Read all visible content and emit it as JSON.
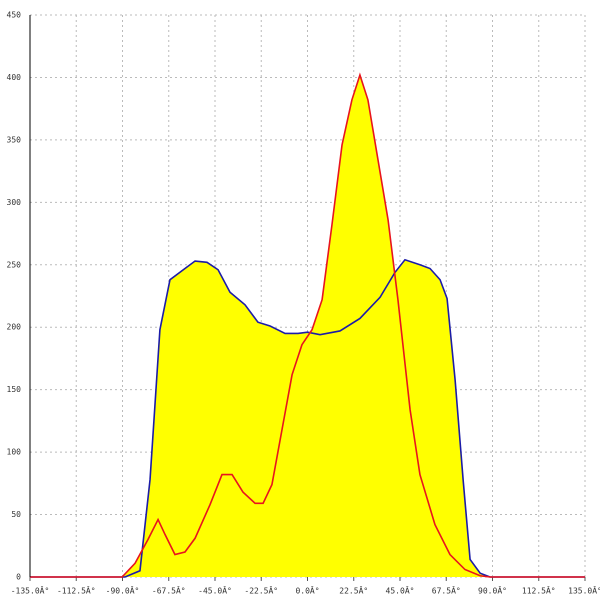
{
  "chart_data": {
    "type": "area",
    "xlim": [
      -135,
      135
    ],
    "xticks": [
      {
        "value": -135,
        "label": "-135.0Â°"
      },
      {
        "value": -112.5,
        "label": "-112.5Â°"
      },
      {
        "value": -90,
        "label": "-90.0Â°"
      },
      {
        "value": -67.5,
        "label": "-67.5Â°"
      },
      {
        "value": -45,
        "label": "-45.0Â°"
      },
      {
        "value": -22.5,
        "label": "-22.5Â°"
      },
      {
        "value": 0,
        "label": "0.0Â°"
      },
      {
        "value": 22.5,
        "label": "22.5Â°"
      },
      {
        "value": 45,
        "label": "45.0Â°"
      },
      {
        "value": 67.5,
        "label": "67.5Â°"
      },
      {
        "value": 90,
        "label": "90.0Â°"
      },
      {
        "value": 112.5,
        "label": "112.5Â°"
      },
      {
        "value": 135,
        "label": "135.0Â°"
      }
    ],
    "ylim": [
      0,
      450
    ],
    "yticks": [
      0,
      50,
      100,
      150,
      200,
      250,
      300,
      350,
      400,
      450
    ],
    "grid": true,
    "fill_color": "#ffff00",
    "series": [
      {
        "color": "#1c1ca8",
        "x": [
          -135,
          -88.8,
          -81.5,
          -76.6,
          -71.8,
          -66.9,
          -59.6,
          -54.7,
          -48.9,
          -43.5,
          -37.7,
          -30.4,
          -24.1,
          -18.2,
          -10.9,
          -4.6,
          0,
          6.1,
          15.8,
          25.5,
          35.3,
          42.6,
          47.4,
          54.7,
          59.6,
          64.5,
          67.9,
          71.8,
          75.7,
          79.1,
          84.0,
          88.8,
          135
        ],
        "values": [
          0,
          0,
          5,
          78,
          198,
          238,
          247,
          253,
          252,
          246,
          228,
          218,
          204,
          201,
          195,
          195,
          196,
          194,
          197,
          207,
          224,
          244,
          254,
          250,
          247,
          238,
          223,
          158,
          78,
          14,
          3,
          0,
          0
        ]
      },
      {
        "color": "#e8141e",
        "x": [
          -135,
          -90.2,
          -83.9,
          -77.6,
          -72.7,
          -69.3,
          -64.5,
          -59.6,
          -54.7,
          -47.4,
          -41.6,
          -36.7,
          -31.4,
          -25.5,
          -21.6,
          -17.3,
          -12.4,
          -7.5,
          -2.7,
          2.2,
          7.1,
          11.9,
          16.8,
          21.6,
          25.5,
          29.4,
          34.3,
          39.2,
          44.0,
          49.9,
          54.7,
          62.0,
          69.3,
          76.6,
          84.0,
          88.8,
          135
        ],
        "values": [
          0,
          0,
          11,
          30,
          46,
          34,
          18,
          20,
          31,
          58,
          82,
          82,
          68,
          59,
          59,
          74,
          118,
          162,
          186,
          198,
          222,
          282,
          346,
          382,
          402,
          382,
          334,
          286,
          222,
          134,
          82,
          42,
          18,
          6,
          1,
          0,
          0
        ]
      }
    ]
  }
}
